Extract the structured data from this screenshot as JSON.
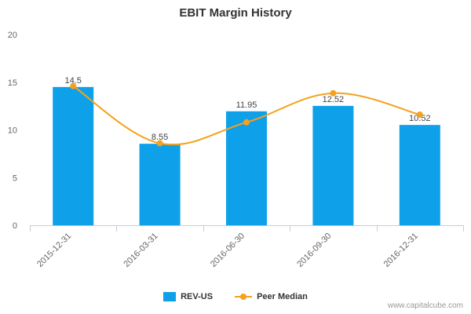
{
  "colors": {
    "bar": "#0ea0e9",
    "line": "#f5a11c",
    "axis": "#c0d0e0",
    "text": "#666666"
  },
  "credit": "www.capitalcube.com",
  "chart_data": {
    "type": "bar",
    "title": "EBIT Margin History",
    "categories": [
      "2015-12-31",
      "2016-03-31",
      "2016-06-30",
      "2016-09-30",
      "2016-12-31"
    ],
    "ylim": [
      0,
      20
    ],
    "yticks": [
      0,
      5,
      10,
      15,
      20
    ],
    "grid": false,
    "legend_position": "bottom",
    "series": [
      {
        "name": "REV-US",
        "type": "bar",
        "values": [
          14.5,
          8.55,
          11.95,
          12.52,
          10.52
        ],
        "labels": [
          "14.5",
          "8.55",
          "11.95",
          "12.52",
          "10.52"
        ]
      },
      {
        "name": "Peer Median",
        "type": "line",
        "smooth": true,
        "values": [
          14.6,
          8.6,
          10.8,
          13.85,
          11.6
        ]
      }
    ]
  }
}
